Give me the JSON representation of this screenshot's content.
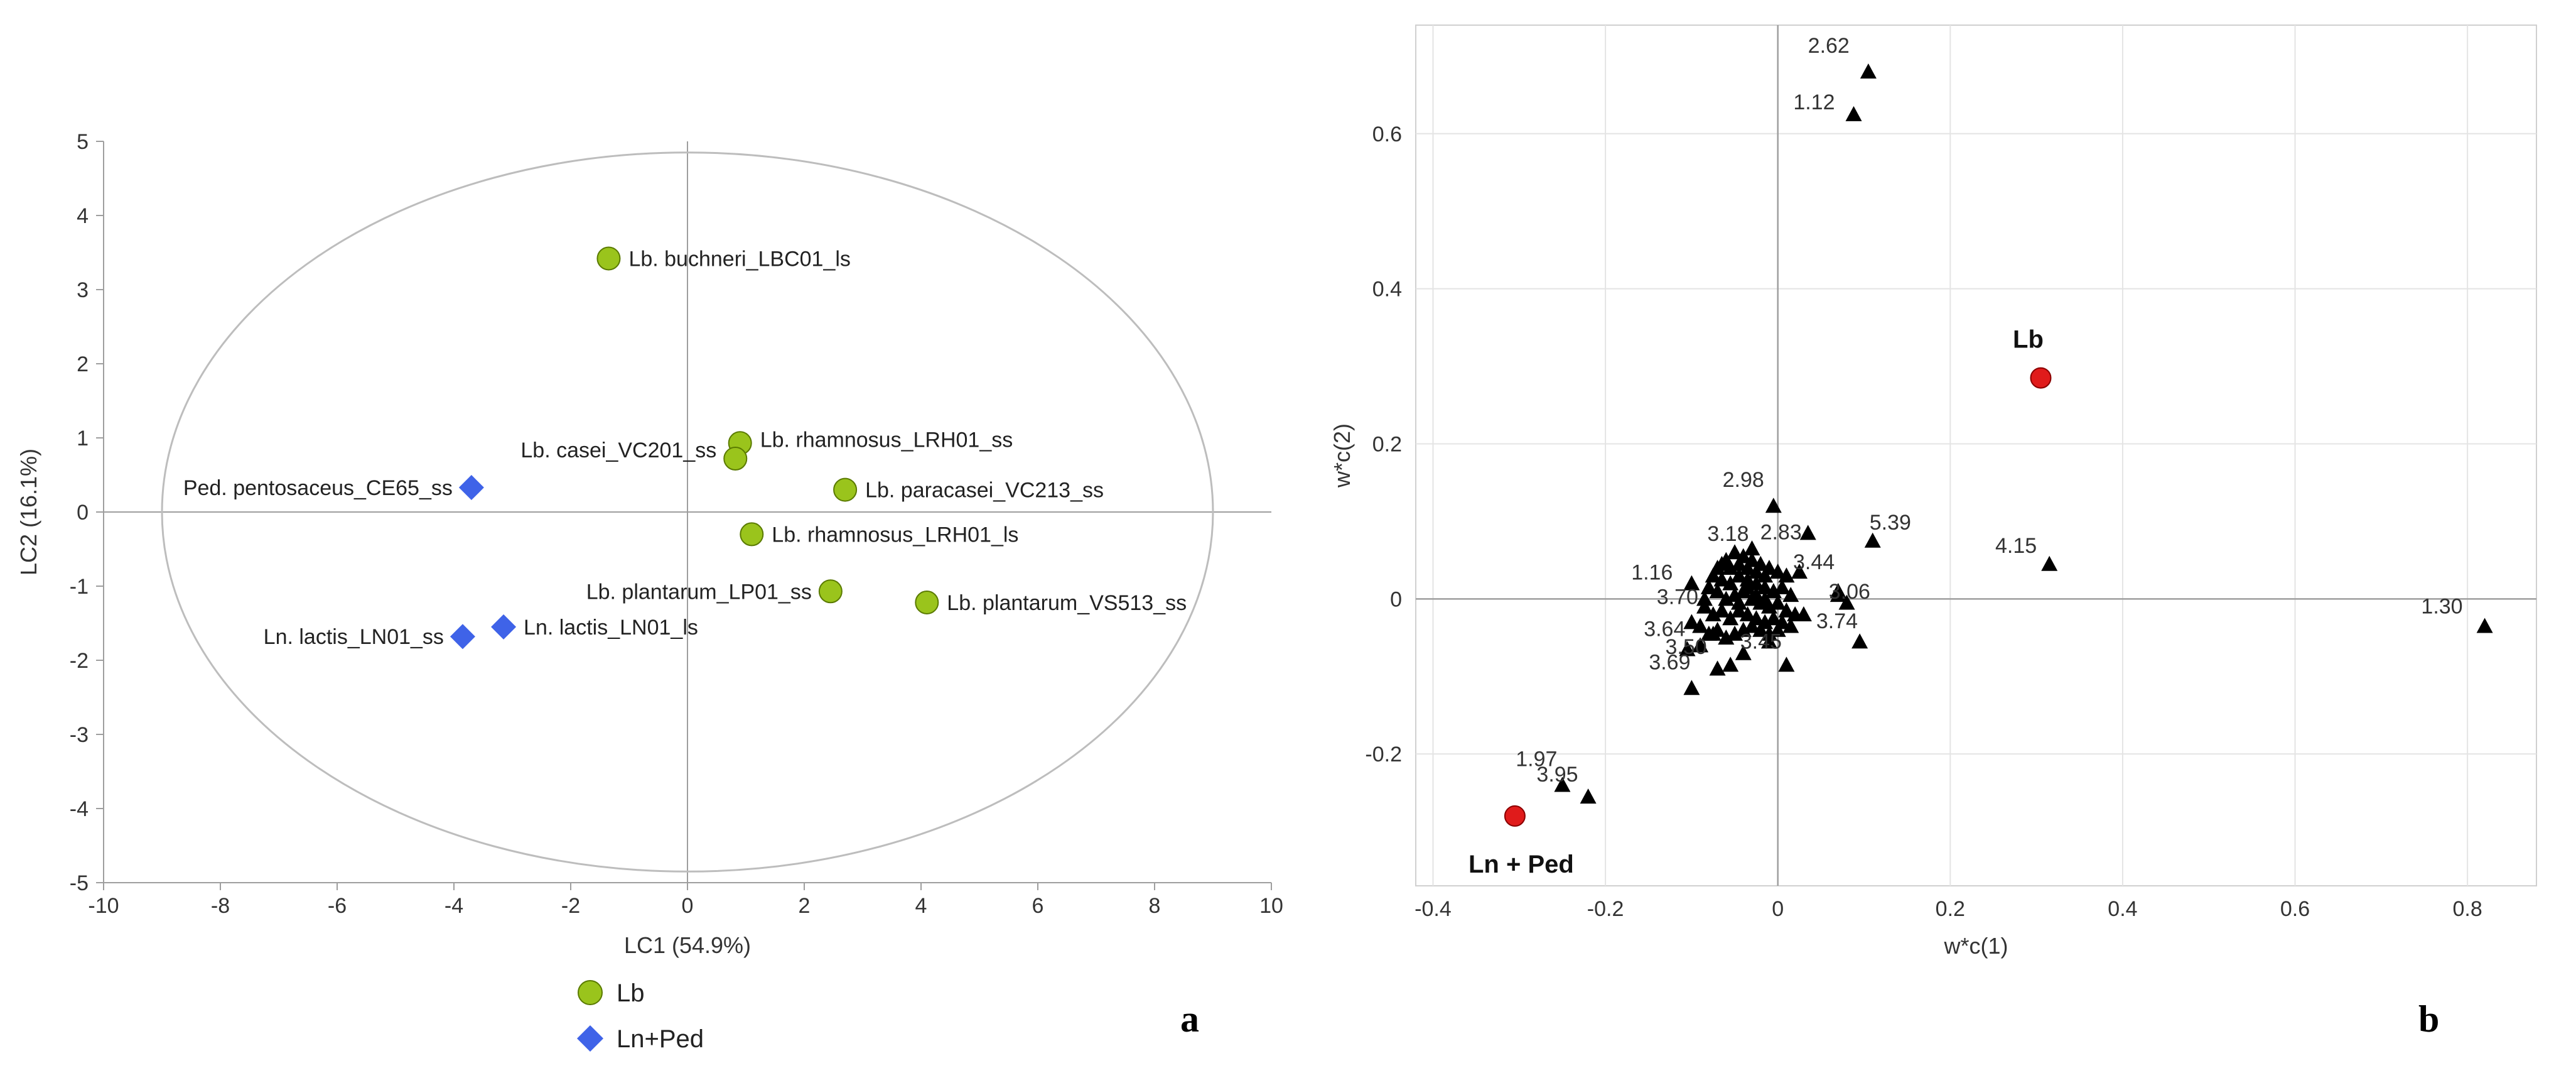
{
  "panels": {
    "a": {
      "letter": "a"
    },
    "b": {
      "letter": "b"
    }
  },
  "colors": {
    "lb": "#9ac41c",
    "lb_stroke": "#5a7a00",
    "ln_ped": "#3f63e8",
    "ellipse": "#bdbdbd",
    "axis": "#9e9e9e",
    "grid": "#e4e4e4",
    "loading": "#000000",
    "class_point": "#e01b1b"
  },
  "chart_data": [
    {
      "id": "scores",
      "type": "scatter",
      "xlabel": "LC1 (54.9%)",
      "ylabel": "LC2 (16.1%)",
      "xlim": [
        -10,
        10
      ],
      "ylim": [
        -5,
        5
      ],
      "xticks": [
        -10,
        -8,
        -6,
        -4,
        -2,
        0,
        2,
        4,
        6,
        8,
        10
      ],
      "yticks": [
        -5,
        -4,
        -3,
        -2,
        -1,
        0,
        1,
        2,
        3,
        4,
        5
      ],
      "grid": false,
      "ellipse": {
        "cx": 0,
        "cy": 0,
        "rx": 9,
        "ry": 4.85
      },
      "legend": {
        "position": "bottom",
        "items": [
          {
            "label": "Lb",
            "marker": "circle",
            "color": "#9ac41c"
          },
          {
            "label": "Ln+Ped",
            "marker": "diamond",
            "color": "#3f63e8"
          }
        ]
      },
      "points": [
        {
          "label": "Lb. buchneri_LBC01_ls",
          "x": -1.35,
          "y": 3.42,
          "group": "Lb"
        },
        {
          "label": "Lb. rhamnosus_LRH01_ss",
          "x": 0.9,
          "y": 0.93,
          "group": "Lb"
        },
        {
          "label": "Lb. casei_VC201_ss",
          "x": 0.82,
          "y": 0.72,
          "group": "Lb"
        },
        {
          "label": "Lb. paracasei_VC213_ss",
          "x": 2.7,
          "y": 0.3,
          "group": "Lb"
        },
        {
          "label": "Lb. rhamnosus_LRH01_ls",
          "x": 1.1,
          "y": -0.3,
          "group": "Lb"
        },
        {
          "label": "Lb. plantarum_LP01_ss",
          "x": 2.45,
          "y": -1.07,
          "group": "Lb"
        },
        {
          "label": "Lb. plantarum_VS513_ss",
          "x": 4.1,
          "y": -1.22,
          "group": "Lb"
        },
        {
          "label": "Ped. pentosaceus_CE65_ss",
          "x": -3.7,
          "y": 0.33,
          "group": "Ln+Ped"
        },
        {
          "label": "Ln. lactis_LN01_ls",
          "x": -3.15,
          "y": -1.55,
          "group": "Ln+Ped"
        },
        {
          "label": "Ln. lactis_LN01_ss",
          "x": -3.85,
          "y": -1.68,
          "group": "Ln+Ped"
        }
      ]
    },
    {
      "id": "loadings",
      "type": "scatter",
      "xlabel": "w*c(1)",
      "ylabel": "w*c(2)",
      "xlim": [
        -0.42,
        0.88
      ],
      "ylim": [
        -0.37,
        0.74
      ],
      "xticks": [
        -0.4,
        -0.2,
        0,
        0.2,
        0.4,
        0.6,
        0.8
      ],
      "yticks": [
        -0.2,
        0,
        0.2,
        0.4,
        0.6
      ],
      "grid": true,
      "class_points": [
        {
          "label": "Lb",
          "x": 0.305,
          "y": 0.285
        },
        {
          "label": "Ln + Ped",
          "x": -0.305,
          "y": -0.28
        }
      ],
      "labeled_variables": [
        {
          "label": "2.62",
          "x": 0.105,
          "y": 0.68
        },
        {
          "label": "1.12",
          "x": 0.088,
          "y": 0.625
        },
        {
          "label": "4.15",
          "x": 0.315,
          "y": 0.045
        },
        {
          "label": "1.30",
          "x": 0.82,
          "y": -0.035
        },
        {
          "label": "1.97",
          "x": -0.25,
          "y": -0.24
        },
        {
          "label": "3.95",
          "x": -0.22,
          "y": -0.255
        },
        {
          "label": "2.98",
          "x": -0.005,
          "y": 0.12
        },
        {
          "label": "2.83",
          "x": 0.035,
          "y": 0.085
        },
        {
          "label": "5.39",
          "x": 0.11,
          "y": 0.075
        },
        {
          "label": "3.18",
          "x": -0.03,
          "y": 0.065
        },
        {
          "label": "1.16",
          "x": -0.1,
          "y": 0.02
        },
        {
          "label": "3.44",
          "x": 0.025,
          "y": 0.035
        },
        {
          "label": "3.06",
          "x": 0.07,
          "y": 0.01
        },
        {
          "label": "3.74",
          "x": 0.03,
          "y": -0.02
        },
        {
          "label": "3.70",
          "x": -0.085,
          "y": 0.0
        },
        {
          "label": "3.64",
          "x": -0.1,
          "y": -0.03
        },
        {
          "label": "3.69",
          "x": -0.105,
          "y": -0.065
        },
        {
          "label": "3.50",
          "x": -0.075,
          "y": -0.045
        },
        {
          "label": "3.45",
          "x": -0.04,
          "y": -0.04
        }
      ],
      "other_variables": [
        [
          -0.07,
          0.04
        ],
        [
          -0.06,
          0.05
        ],
        [
          -0.05,
          0.06
        ],
        [
          -0.04,
          0.055
        ],
        [
          -0.03,
          0.05
        ],
        [
          -0.02,
          0.045
        ],
        [
          -0.01,
          0.04
        ],
        [
          0.0,
          0.035
        ],
        [
          0.01,
          0.03
        ],
        [
          -0.075,
          0.03
        ],
        [
          -0.065,
          0.025
        ],
        [
          -0.055,
          0.02
        ],
        [
          -0.045,
          0.03
        ],
        [
          -0.035,
          0.025
        ],
        [
          -0.025,
          0.02
        ],
        [
          -0.015,
          0.015
        ],
        [
          -0.005,
          0.01
        ],
        [
          0.005,
          0.015
        ],
        [
          0.015,
          0.005
        ],
        [
          -0.08,
          0.015
        ],
        [
          -0.07,
          0.01
        ],
        [
          -0.06,
          0.0
        ],
        [
          -0.05,
          0.005
        ],
        [
          -0.04,
          0.01
        ],
        [
          -0.03,
          0.0
        ],
        [
          -0.02,
          -0.005
        ],
        [
          -0.01,
          -0.01
        ],
        [
          0.0,
          -0.005
        ],
        [
          0.01,
          -0.015
        ],
        [
          -0.085,
          -0.01
        ],
        [
          -0.075,
          -0.02
        ],
        [
          -0.065,
          -0.015
        ],
        [
          -0.055,
          -0.025
        ],
        [
          -0.045,
          -0.015
        ],
        [
          -0.035,
          -0.02
        ],
        [
          -0.025,
          -0.025
        ],
        [
          -0.015,
          -0.03
        ],
        [
          -0.005,
          -0.025
        ],
        [
          0.005,
          -0.03
        ],
        [
          -0.09,
          -0.035
        ],
        [
          -0.08,
          -0.045
        ],
        [
          -0.07,
          -0.04
        ],
        [
          -0.06,
          -0.05
        ],
        [
          -0.05,
          -0.045
        ],
        [
          -0.03,
          -0.035
        ],
        [
          -0.02,
          -0.04
        ],
        [
          -0.01,
          -0.045
        ],
        [
          0.0,
          -0.04
        ],
        [
          0.015,
          -0.035
        ],
        [
          -0.065,
          0.045
        ],
        [
          -0.055,
          0.04
        ],
        [
          -0.045,
          0.045
        ],
        [
          -0.035,
          0.04
        ],
        [
          -0.025,
          0.035
        ],
        [
          -0.015,
          0.03
        ],
        [
          -0.045,
          -0.005
        ],
        [
          -0.035,
          0.015
        ],
        [
          -0.025,
          0.005
        ],
        [
          -0.015,
          0.0
        ],
        [
          0.02,
          -0.02
        ],
        [
          -0.1,
          -0.115
        ],
        [
          -0.07,
          -0.09
        ],
        [
          -0.055,
          -0.085
        ],
        [
          -0.04,
          -0.07
        ],
        [
          -0.01,
          -0.055
        ],
        [
          0.01,
          -0.085
        ],
        [
          0.095,
          -0.055
        ],
        [
          0.08,
          -0.005
        ],
        [
          0.07,
          0.005
        ],
        [
          -0.09,
          -0.06
        ]
      ]
    }
  ]
}
